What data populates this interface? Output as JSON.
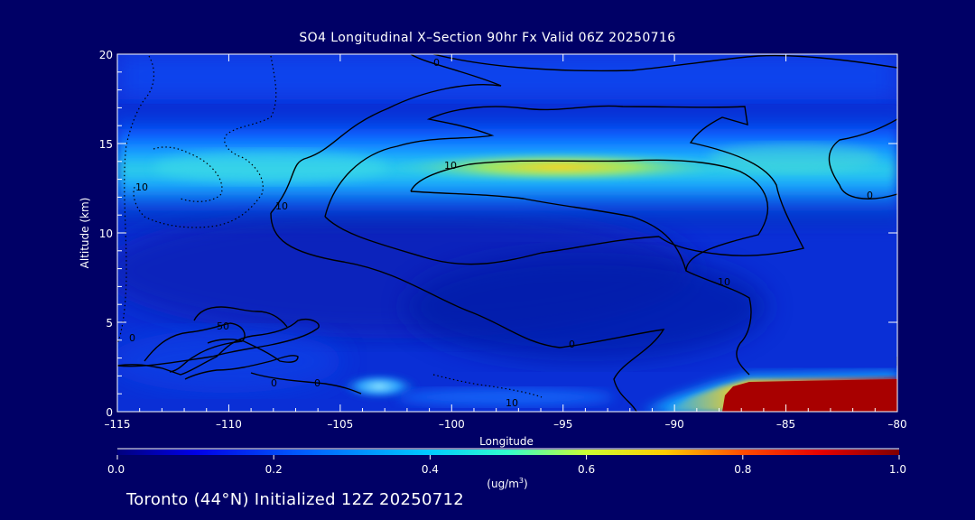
{
  "chart_data": {
    "type": "heatmap",
    "title": "SO4 Longitudinal X–Section 90hr  Fx Valid 06Z 20250716",
    "xlabel": "Longitude",
    "ylabel": "Altitude (km)",
    "xlim": [
      -115,
      -80
    ],
    "ylim": [
      0,
      20
    ],
    "x_ticks": [
      -115,
      -110,
      -105,
      -100,
      -95,
      -90,
      -85,
      -80
    ],
    "x_tick_labels": [
      "–115",
      "–110",
      "–105",
      "–100",
      "–95",
      "–90",
      "–85",
      "–80"
    ],
    "y_ticks": [
      0,
      5,
      10,
      15,
      20
    ],
    "y_tick_labels": [
      "0",
      "5",
      "10",
      "15",
      "20"
    ],
    "colorbar": {
      "range": [
        0.0,
        1.0
      ],
      "tick_values": [
        0.0,
        0.2,
        0.4,
        0.6,
        0.8,
        1.0
      ],
      "tick_labels": [
        "0.0",
        "0.2",
        "0.4",
        "0.6",
        "0.8",
        "1.0"
      ],
      "units_prefix": "(ug/m",
      "units_superscript": "3",
      "units_suffix": ")"
    },
    "field_features": [
      {
        "description": "upper SO4 layer",
        "lon_range": [
          -115,
          -80
        ],
        "alt_center_km": 13.7,
        "peak_value": 0.6,
        "peak_lon": -95
      },
      {
        "description": "surface plume",
        "lon_range": [
          -90,
          -80
        ],
        "alt_range_km": [
          0,
          1.8
        ],
        "peak_value": 1.0
      },
      {
        "description": "low-level patch",
        "lon_range": [
          -105,
          -101
        ],
        "alt_range_km": [
          0.9,
          2.2
        ],
        "peak_value": 0.4
      }
    ],
    "contour_labels": [
      "0",
      "10",
      "10",
      "10",
      "0",
      "0",
      "10",
      "0",
      "50",
      "0",
      "0",
      "10"
    ]
  },
  "footer": {
    "location": "Toronto (44°N) Initialized 12Z 20250712"
  },
  "colors": {
    "background": "#000066",
    "foreground": "#ffffff",
    "contour": "#000000"
  }
}
